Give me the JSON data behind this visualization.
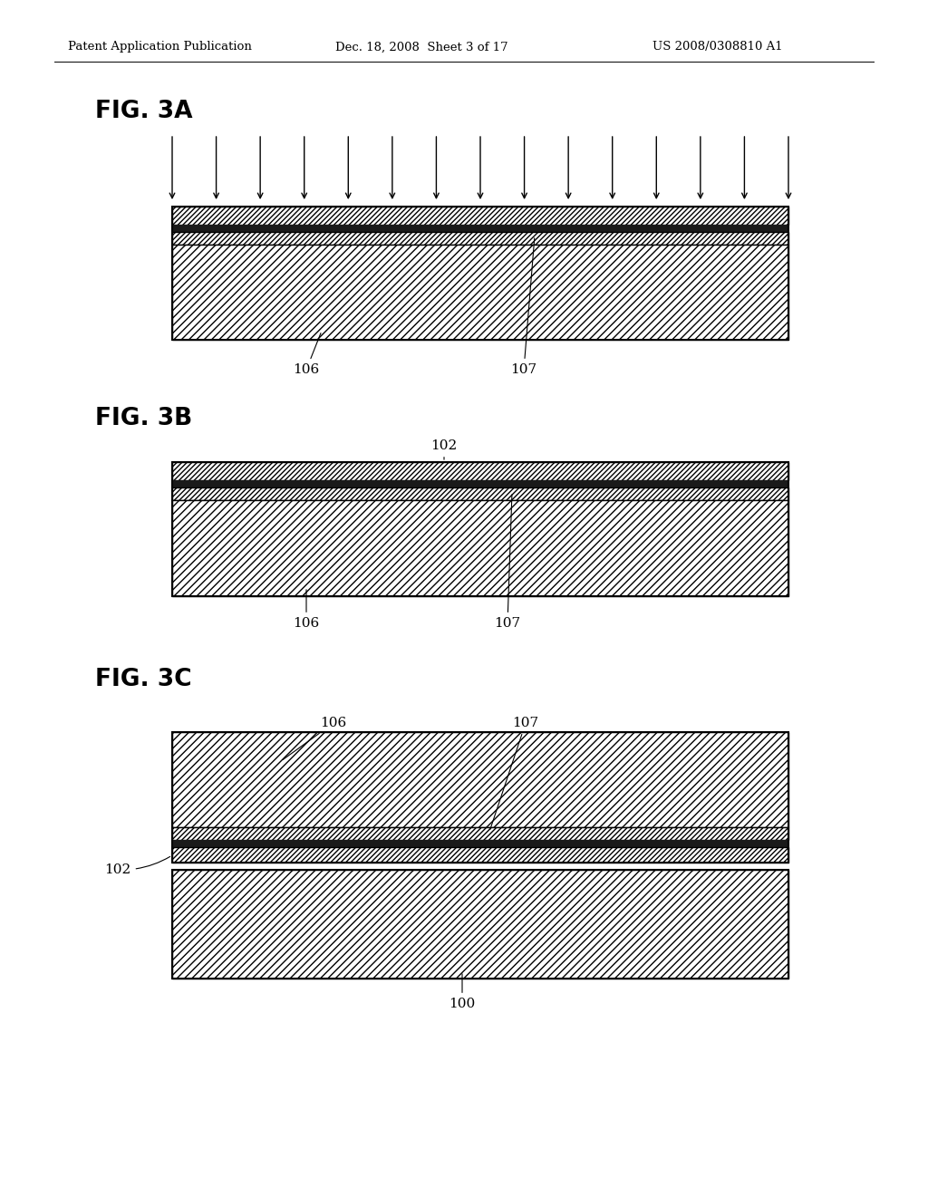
{
  "header_left": "Patent Application Publication",
  "header_center": "Dec. 18, 2008  Sheet 3 of 17",
  "header_right": "US 2008/0308810 A1",
  "background_color": "#ffffff",
  "line_color": "#000000",
  "fig3a_label": "FIG. 3A",
  "fig3b_label": "FIG. 3B",
  "fig3c_label": "FIG. 3C",
  "label_106": "106",
  "label_107": "107",
  "label_102": "102",
  "label_100": "100"
}
